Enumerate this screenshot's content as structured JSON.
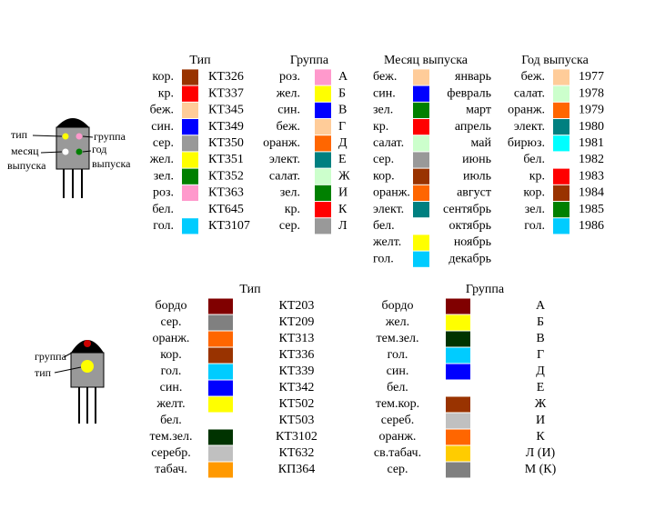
{
  "top_diagram": {
    "labels": [
      "тип",
      "месяц",
      "выпуска",
      "группа",
      "год",
      "выпуска"
    ]
  },
  "top_tables": [
    {
      "header": "Тип",
      "rows": [
        [
          "кор.",
          "#993300",
          "КТ326"
        ],
        [
          "кр.",
          "#FF0000",
          "КТ337"
        ],
        [
          "беж.",
          "#FFCC99",
          "КТ345"
        ],
        [
          "син.",
          "#0000FF",
          "КТ349"
        ],
        [
          "сер.",
          "#999999",
          "КТ350"
        ],
        [
          "жел.",
          "#FFFF00",
          "КТ351"
        ],
        [
          "зел.",
          "#008000",
          "КТ352"
        ],
        [
          "роз.",
          "#FF99CC",
          "КТ363"
        ],
        [
          "бел.",
          "#FFFFFF",
          "КТ645"
        ],
        [
          "гол.",
          "#00CCFF",
          "КТ3107"
        ]
      ]
    },
    {
      "header": "Группа",
      "rows": [
        [
          "роз.",
          "#FF99CC",
          "А"
        ],
        [
          "жел.",
          "#FFFF00",
          "Б"
        ],
        [
          "син.",
          "#0000FF",
          "В"
        ],
        [
          "беж.",
          "#FFCC99",
          "Г"
        ],
        [
          "оранж.",
          "#FF6600",
          "Д"
        ],
        [
          "элект.",
          "#008080",
          "Е"
        ],
        [
          "салат.",
          "#CCFFCC",
          "Ж"
        ],
        [
          "зел.",
          "#008000",
          "И"
        ],
        [
          "кр.",
          "#FF0000",
          "К"
        ],
        [
          "сер.",
          "#999999",
          "Л"
        ]
      ]
    },
    {
      "header": "Месяц выпуска",
      "rows": [
        [
          "беж.",
          "#FFCC99",
          "январь"
        ],
        [
          "син.",
          "#0000FF",
          "февраль"
        ],
        [
          "зел.",
          "#008000",
          "март"
        ],
        [
          "кр.",
          "#FF0000",
          "апрель"
        ],
        [
          "салат.",
          "#CCFFCC",
          "май"
        ],
        [
          "сер.",
          "#999999",
          "июнь"
        ],
        [
          "кор.",
          "#993300",
          "июль"
        ],
        [
          "оранж.",
          "#FF6600",
          "август"
        ],
        [
          "элект.",
          "#008080",
          "сентябрь"
        ],
        [
          "бел.",
          "#FFFFFF",
          "октябрь"
        ],
        [
          "желт.",
          "#FFFF00",
          "ноябрь"
        ],
        [
          "гол.",
          "#00CCFF",
          "декабрь"
        ]
      ]
    },
    {
      "header": "Год выпуска",
      "rows": [
        [
          "беж.",
          "#FFCC99",
          "1977"
        ],
        [
          "салат.",
          "#CCFFCC",
          "1978"
        ],
        [
          "оранж.",
          "#FF6600",
          "1979"
        ],
        [
          "элект.",
          "#008080",
          "1980"
        ],
        [
          "бирюз.",
          "#00FFFF",
          "1981"
        ],
        [
          "бел.",
          "#FFFFFF",
          "1982"
        ],
        [
          "кр.",
          "#FF0000",
          "1983"
        ],
        [
          "кор.",
          "#993300",
          "1984"
        ],
        [
          "зел.",
          "#008000",
          "1985"
        ],
        [
          "гол.",
          "#00CCFF",
          "1986"
        ]
      ]
    }
  ],
  "bottom_diagram": {
    "labels": [
      "группа",
      "тип"
    ]
  },
  "bottom_tables": [
    {
      "header": "Тип",
      "rows": [
        [
          "бордо",
          "#800000",
          "КТ203"
        ],
        [
          "сер.",
          "#808080",
          "КТ209"
        ],
        [
          "оранж.",
          "#FF6600",
          "КТ313"
        ],
        [
          "кор.",
          "#993300",
          "КТ336"
        ],
        [
          "гол.",
          "#00CCFF",
          "КТ339"
        ],
        [
          "син.",
          "#0000FF",
          "КТ342"
        ],
        [
          "желт.",
          "#FFFF00",
          "КТ502"
        ],
        [
          "бел.",
          "#FFFFFF",
          "КТ503"
        ],
        [
          "тем.зел.",
          "#003300",
          "КТ3102"
        ],
        [
          "серебр.",
          "#C0C0C0",
          "КТ632"
        ],
        [
          "табач.",
          "#FF9900",
          "КП364"
        ]
      ]
    },
    {
      "header": "Группа",
      "rows": [
        [
          "бордо",
          "#800000",
          "А"
        ],
        [
          "жел.",
          "#FFFF00",
          "Б"
        ],
        [
          "тем.зел.",
          "#003300",
          "В"
        ],
        [
          "гол.",
          "#00CCFF",
          "Г"
        ],
        [
          "син.",
          "#0000FF",
          "Д"
        ],
        [
          "бел.",
          "#FFFFFF",
          "Е"
        ],
        [
          "тем.кор.",
          "#993300",
          "Ж"
        ],
        [
          "сереб.",
          "#C0C0C0",
          "И"
        ],
        [
          "оранж.",
          "#FF6600",
          "К"
        ],
        [
          "св.табач.",
          "#FFCC00",
          "Л (И)"
        ],
        [
          "сер.",
          "#808080",
          "М (К)"
        ]
      ]
    }
  ]
}
